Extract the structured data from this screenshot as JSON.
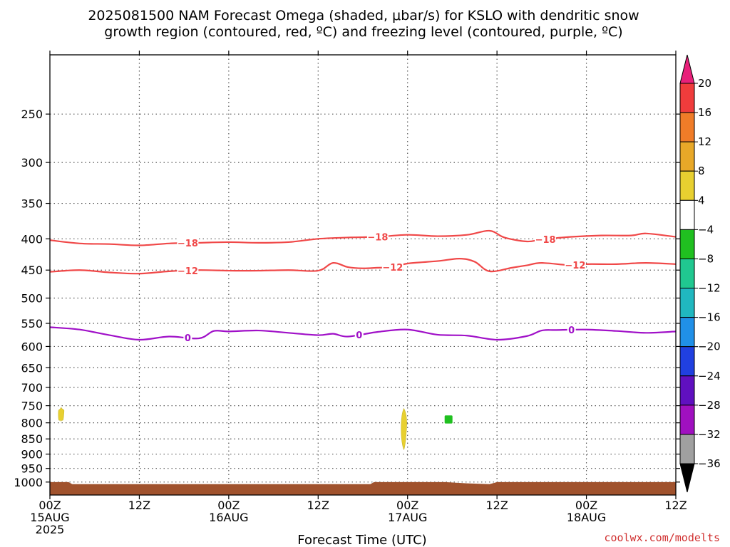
{
  "chart_data": {
    "type": "heatmap",
    "title_lines": [
      "2025081500 NAM Forecast Omega (shaded, μbar/s) for KSLO with dendritic snow",
      "growth region (contoured, red, ºC) and freezing level (contoured, purple, ºC)"
    ],
    "xlabel": "Forecast Time (UTC)",
    "credit": "coolwx.com/modelts",
    "x_range": [
      0,
      84
    ],
    "x_ticks": [
      {
        "hour": 0,
        "lines": [
          "00Z",
          "15AUG",
          "2025"
        ]
      },
      {
        "hour": 12,
        "lines": [
          "12Z"
        ]
      },
      {
        "hour": 24,
        "lines": [
          "00Z",
          "16AUG"
        ]
      },
      {
        "hour": 36,
        "lines": [
          "12Z"
        ]
      },
      {
        "hour": 48,
        "lines": [
          "00Z",
          "17AUG"
        ]
      },
      {
        "hour": 60,
        "lines": [
          "12Z"
        ]
      },
      {
        "hour": 72,
        "lines": [
          "00Z",
          "18AUG"
        ]
      },
      {
        "hour": 84,
        "lines": [
          "12Z"
        ]
      }
    ],
    "y_scale": "log-pressure",
    "y_range_hpa": [
      200,
      1050
    ],
    "y_ticks": [
      250,
      300,
      350,
      400,
      450,
      500,
      550,
      600,
      650,
      700,
      750,
      800,
      850,
      900,
      950,
      1000
    ],
    "grid": true,
    "colorbar": {
      "ticks": [
        "20",
        "16",
        "12",
        "8",
        "4",
        "−4",
        "−8",
        "−12",
        "−16",
        "−20",
        "−24",
        "−28",
        "−32",
        "−36"
      ],
      "colors_top_to_bottom": [
        "#e8207a",
        "#f03c3c",
        "#f07c28",
        "#e8a828",
        "#e8d030",
        "#ffffff",
        "#20c020",
        "#20c890",
        "#20b8c0",
        "#2090e8",
        "#2040e0",
        "#6010c0",
        "#a010c0",
        "#a0a0a0",
        "#000000"
      ]
    },
    "contours": [
      {
        "level_label": "−18",
        "color": "#f04848",
        "label_hours": [
          18.5,
          44,
          66.5
        ],
        "points": [
          [
            0,
            402
          ],
          [
            4,
            407
          ],
          [
            8,
            408
          ],
          [
            12,
            410
          ],
          [
            16,
            407
          ],
          [
            20,
            406
          ],
          [
            24,
            405
          ],
          [
            28,
            406
          ],
          [
            32,
            405
          ],
          [
            36,
            400
          ],
          [
            40,
            398
          ],
          [
            44,
            397
          ],
          [
            48,
            394
          ],
          [
            52,
            396
          ],
          [
            56,
            394
          ],
          [
            59,
            388
          ],
          [
            61,
            398
          ],
          [
            64,
            404
          ],
          [
            66,
            401
          ],
          [
            70,
            397
          ],
          [
            74,
            395
          ],
          [
            78,
            395
          ],
          [
            80,
            392
          ],
          [
            84,
            397
          ]
        ]
      },
      {
        "level_label": "−12",
        "color": "#f04848",
        "label_hours": [
          18.5,
          46,
          70.5
        ],
        "points": [
          [
            0,
            453
          ],
          [
            4,
            450
          ],
          [
            8,
            454
          ],
          [
            12,
            456
          ],
          [
            16,
            452
          ],
          [
            20,
            450
          ],
          [
            24,
            451
          ],
          [
            28,
            451
          ],
          [
            32,
            450
          ],
          [
            36,
            451
          ],
          [
            38,
            438
          ],
          [
            40,
            445
          ],
          [
            42,
            447
          ],
          [
            44,
            446
          ],
          [
            46,
            445
          ],
          [
            48,
            439
          ],
          [
            52,
            435
          ],
          [
            55,
            431
          ],
          [
            57,
            436
          ],
          [
            59,
            452
          ],
          [
            62,
            446
          ],
          [
            64,
            442
          ],
          [
            66,
            438
          ],
          [
            70,
            442
          ],
          [
            72,
            440
          ],
          [
            76,
            440
          ],
          [
            80,
            438
          ],
          [
            84,
            440
          ]
        ]
      },
      {
        "level_label": "0",
        "color": "#a010c8",
        "label_hours": [
          18.5,
          41.5,
          70
        ],
        "points": [
          [
            0,
            558
          ],
          [
            4,
            563
          ],
          [
            8,
            575
          ],
          [
            12,
            585
          ],
          [
            16,
            578
          ],
          [
            20,
            582
          ],
          [
            22,
            566
          ],
          [
            24,
            567
          ],
          [
            28,
            565
          ],
          [
            32,
            570
          ],
          [
            36,
            575
          ],
          [
            38,
            572
          ],
          [
            40,
            578
          ],
          [
            44,
            568
          ],
          [
            48,
            563
          ],
          [
            52,
            574
          ],
          [
            56,
            576
          ],
          [
            60,
            585
          ],
          [
            64,
            577
          ],
          [
            66,
            565
          ],
          [
            68,
            564
          ],
          [
            72,
            563
          ],
          [
            76,
            566
          ],
          [
            80,
            570
          ],
          [
            84,
            567
          ]
        ]
      }
    ],
    "shaded_regions": [
      {
        "omega_label": "4",
        "color": "#e8d030",
        "center_hour": 1.5,
        "p_top": 755,
        "p_bottom": 795
      },
      {
        "omega_label": "4",
        "color": "#e8d030",
        "center_hour": 47.5,
        "p_top": 758,
        "p_bottom": 885
      },
      {
        "omega_label": "−8",
        "color": "#20c020",
        "center_hour": 53.5,
        "p_top": 778,
        "p_bottom": 802
      }
    ],
    "terrain": {
      "color": "#a0522d",
      "surface_hpa": [
        [
          0,
          1000
        ],
        [
          2.5,
          1000
        ],
        [
          3,
          1008
        ],
        [
          43,
          1008
        ],
        [
          43.5,
          1000
        ],
        [
          53,
          1000
        ],
        [
          56,
          1005
        ],
        [
          59,
          1008
        ],
        [
          60,
          1000
        ],
        [
          84,
          1000
        ]
      ]
    }
  }
}
